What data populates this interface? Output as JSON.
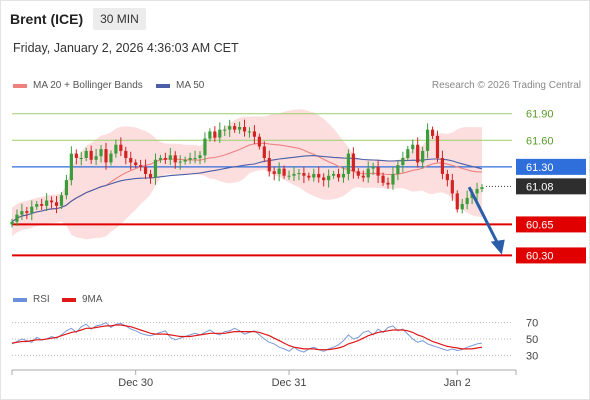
{
  "header": {
    "title": "Brent (ICE)",
    "interval": "30 MIN",
    "datetime": "Friday, January 2, 2026 4:36:03 AM CET"
  },
  "legend": {
    "ma20_label": "MA 20 + Bollinger Bands",
    "ma50_label": "MA 50",
    "credit": "Research © 2026 Trading Central",
    "rsi_label": "RSI",
    "rsi_ma_label": "9MA"
  },
  "colors": {
    "bull": "#3a9c3a",
    "bear": "#d22323",
    "ma20": "#f08080",
    "ma50": "#4a5fa8",
    "band": "#fbd3d3",
    "resistance": "#9acd6c",
    "pivot": "#2f6fdc",
    "support": "#e00000",
    "forecast": "#2b5ea8",
    "rsi": "#7b9ad8",
    "rsi_ma": "#e01818"
  },
  "chart_data": {
    "type": "candlestick",
    "ylim": [
      60.0,
      62.1
    ],
    "x_ticks": [
      "Dec 30",
      "Dec 31",
      "Jan 2"
    ],
    "x_tick_index": [
      25,
      56,
      90
    ],
    "levels": [
      {
        "value": 61.9,
        "label": "61.90",
        "kind": "resistance"
      },
      {
        "value": 61.6,
        "label": "61.60",
        "kind": "resistance"
      },
      {
        "value": 61.3,
        "label": "61.30",
        "kind": "pivot"
      },
      {
        "value": 61.08,
        "label": "61.08",
        "kind": "last"
      },
      {
        "value": 60.65,
        "label": "60.65",
        "kind": "support"
      },
      {
        "value": 60.3,
        "label": "60.30",
        "kind": "support"
      }
    ],
    "forecast": {
      "from_index": 92,
      "from_value": 61.07,
      "to_index": 99,
      "to_value": 60.32
    },
    "close": [
      60.68,
      60.76,
      60.8,
      60.78,
      60.85,
      60.88,
      60.86,
      60.92,
      60.9,
      60.86,
      60.98,
      61.15,
      61.45,
      61.4,
      61.4,
      61.48,
      61.38,
      61.42,
      61.5,
      61.35,
      61.45,
      61.55,
      61.48,
      61.4,
      61.35,
      61.32,
      61.3,
      61.22,
      61.18,
      61.38,
      61.4,
      61.38,
      61.43,
      61.35,
      61.36,
      61.38,
      61.4,
      61.4,
      61.43,
      61.62,
      61.7,
      61.63,
      61.72,
      61.72,
      61.76,
      61.72,
      61.75,
      61.7,
      61.7,
      61.64,
      61.53,
      61.4,
      61.25,
      61.22,
      61.28,
      61.2,
      61.2,
      61.22,
      61.23,
      61.2,
      61.18,
      61.22,
      61.18,
      61.15,
      61.2,
      61.22,
      61.18,
      61.22,
      61.45,
      61.25,
      61.2,
      61.18,
      61.28,
      61.3,
      61.2,
      61.12,
      61.1,
      61.22,
      61.32,
      61.4,
      61.5,
      61.55,
      61.35,
      61.48,
      61.72,
      61.65,
      61.4,
      61.22,
      61.15,
      61.0,
      60.82,
      60.88,
      60.95,
      61.0,
      61.05,
      61.07
    ],
    "rsi": {
      "ticks": [
        70,
        50,
        30
      ],
      "ylim": [
        22,
        78
      ],
      "values": [
        44,
        47,
        50,
        48,
        46,
        52,
        49,
        50,
        53,
        51,
        55,
        60,
        63,
        58,
        65,
        68,
        62,
        66,
        67,
        70,
        64,
        68,
        69,
        66,
        62,
        60,
        57,
        55,
        54,
        56,
        58,
        60,
        52,
        49,
        51,
        53,
        55,
        57,
        55,
        58,
        61,
        57,
        55,
        59,
        60,
        63,
        60,
        56,
        58,
        60,
        55,
        50,
        46,
        44,
        40,
        38,
        35,
        40,
        36,
        34,
        38,
        40,
        37,
        35,
        38,
        40,
        43,
        48,
        55,
        50,
        52,
        58,
        60,
        55,
        62,
        58,
        64,
        66,
        60,
        62,
        56,
        50,
        46,
        48,
        44,
        42,
        40,
        38,
        36,
        38,
        36,
        37,
        40,
        42,
        44,
        45
      ],
      "ma": [
        45,
        46,
        47,
        47,
        48,
        49,
        49,
        50,
        51,
        52,
        54,
        56,
        58,
        59,
        61,
        63,
        63,
        64,
        65,
        66,
        66,
        67,
        67,
        66,
        65,
        63,
        61,
        59,
        57,
        56,
        56,
        56,
        55,
        54,
        53,
        53,
        53,
        54,
        55,
        56,
        57,
        57,
        57,
        57,
        58,
        59,
        59,
        59,
        59,
        59,
        58,
        56,
        54,
        51,
        48,
        45,
        42,
        40,
        39,
        38,
        38,
        38,
        37,
        37,
        37,
        38,
        39,
        41,
        44,
        46,
        48,
        51,
        54,
        56,
        58,
        59,
        60,
        61,
        61,
        61,
        60,
        58,
        55,
        53,
        50,
        47,
        45,
        43,
        41,
        40,
        39,
        38,
        38,
        38,
        39,
        40
      ]
    }
  }
}
